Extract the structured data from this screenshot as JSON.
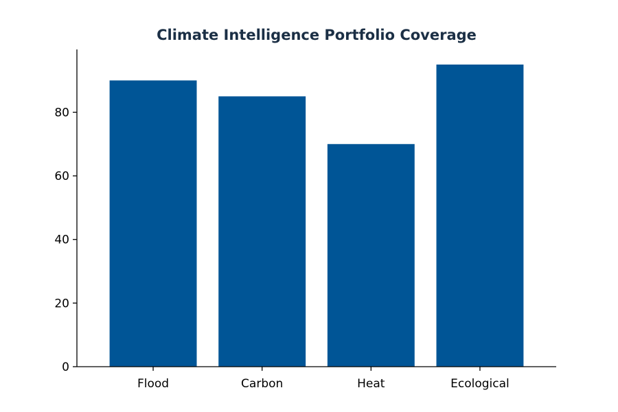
{
  "chart_data": {
    "type": "bar",
    "title": "Climate Intelligence Portfolio Coverage",
    "categories": [
      "Flood",
      "Carbon",
      "Heat",
      "Ecological"
    ],
    "values": [
      90,
      85,
      70,
      95
    ],
    "xlabel": "",
    "ylabel": "",
    "ylim": [
      0,
      99.75
    ],
    "yticks": [
      0,
      20,
      40,
      60,
      80
    ],
    "grid": false,
    "legend": "none",
    "colors": {
      "bar": "#005596",
      "title": "#1b2f45",
      "axis": "#000000"
    }
  }
}
